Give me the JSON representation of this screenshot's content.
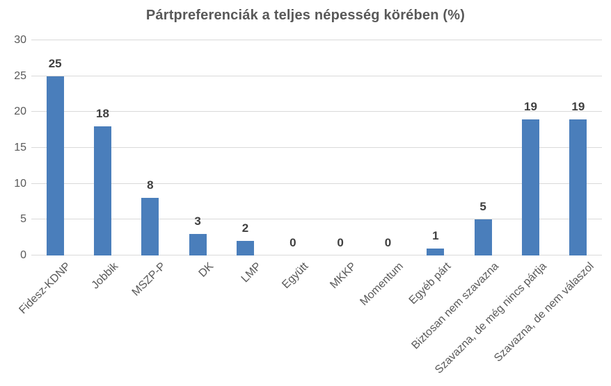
{
  "chart_data": {
    "type": "bar",
    "title": "Pártpreferenciák a teljes népesség körében (%)",
    "categories": [
      "Fidesz-KDNP",
      "Jobbik",
      "MSZP-P",
      "DK",
      "LMP",
      "Együtt",
      "MKKP",
      "Momentum",
      "Egyéb párt",
      "Biztosan nem szavazna",
      "Szavazna, de még nincs pártja",
      "Szavazna, de nem válaszol"
    ],
    "values": [
      25,
      18,
      8,
      3,
      2,
      0,
      0,
      0,
      1,
      5,
      19,
      19
    ],
    "xlabel": "",
    "ylabel": "",
    "ylim": [
      0,
      30
    ],
    "yticks": [
      0,
      5,
      10,
      15,
      20,
      25,
      30
    ],
    "grid": true,
    "legend": false,
    "value_labels": true,
    "x_tick_rotation_deg": 45,
    "colors": {
      "bar": "#4a7ebb",
      "title": "#595959",
      "axis_labels": "#595959",
      "value_labels": "#3f3f3f",
      "gridline": "#d9d9d9"
    }
  }
}
